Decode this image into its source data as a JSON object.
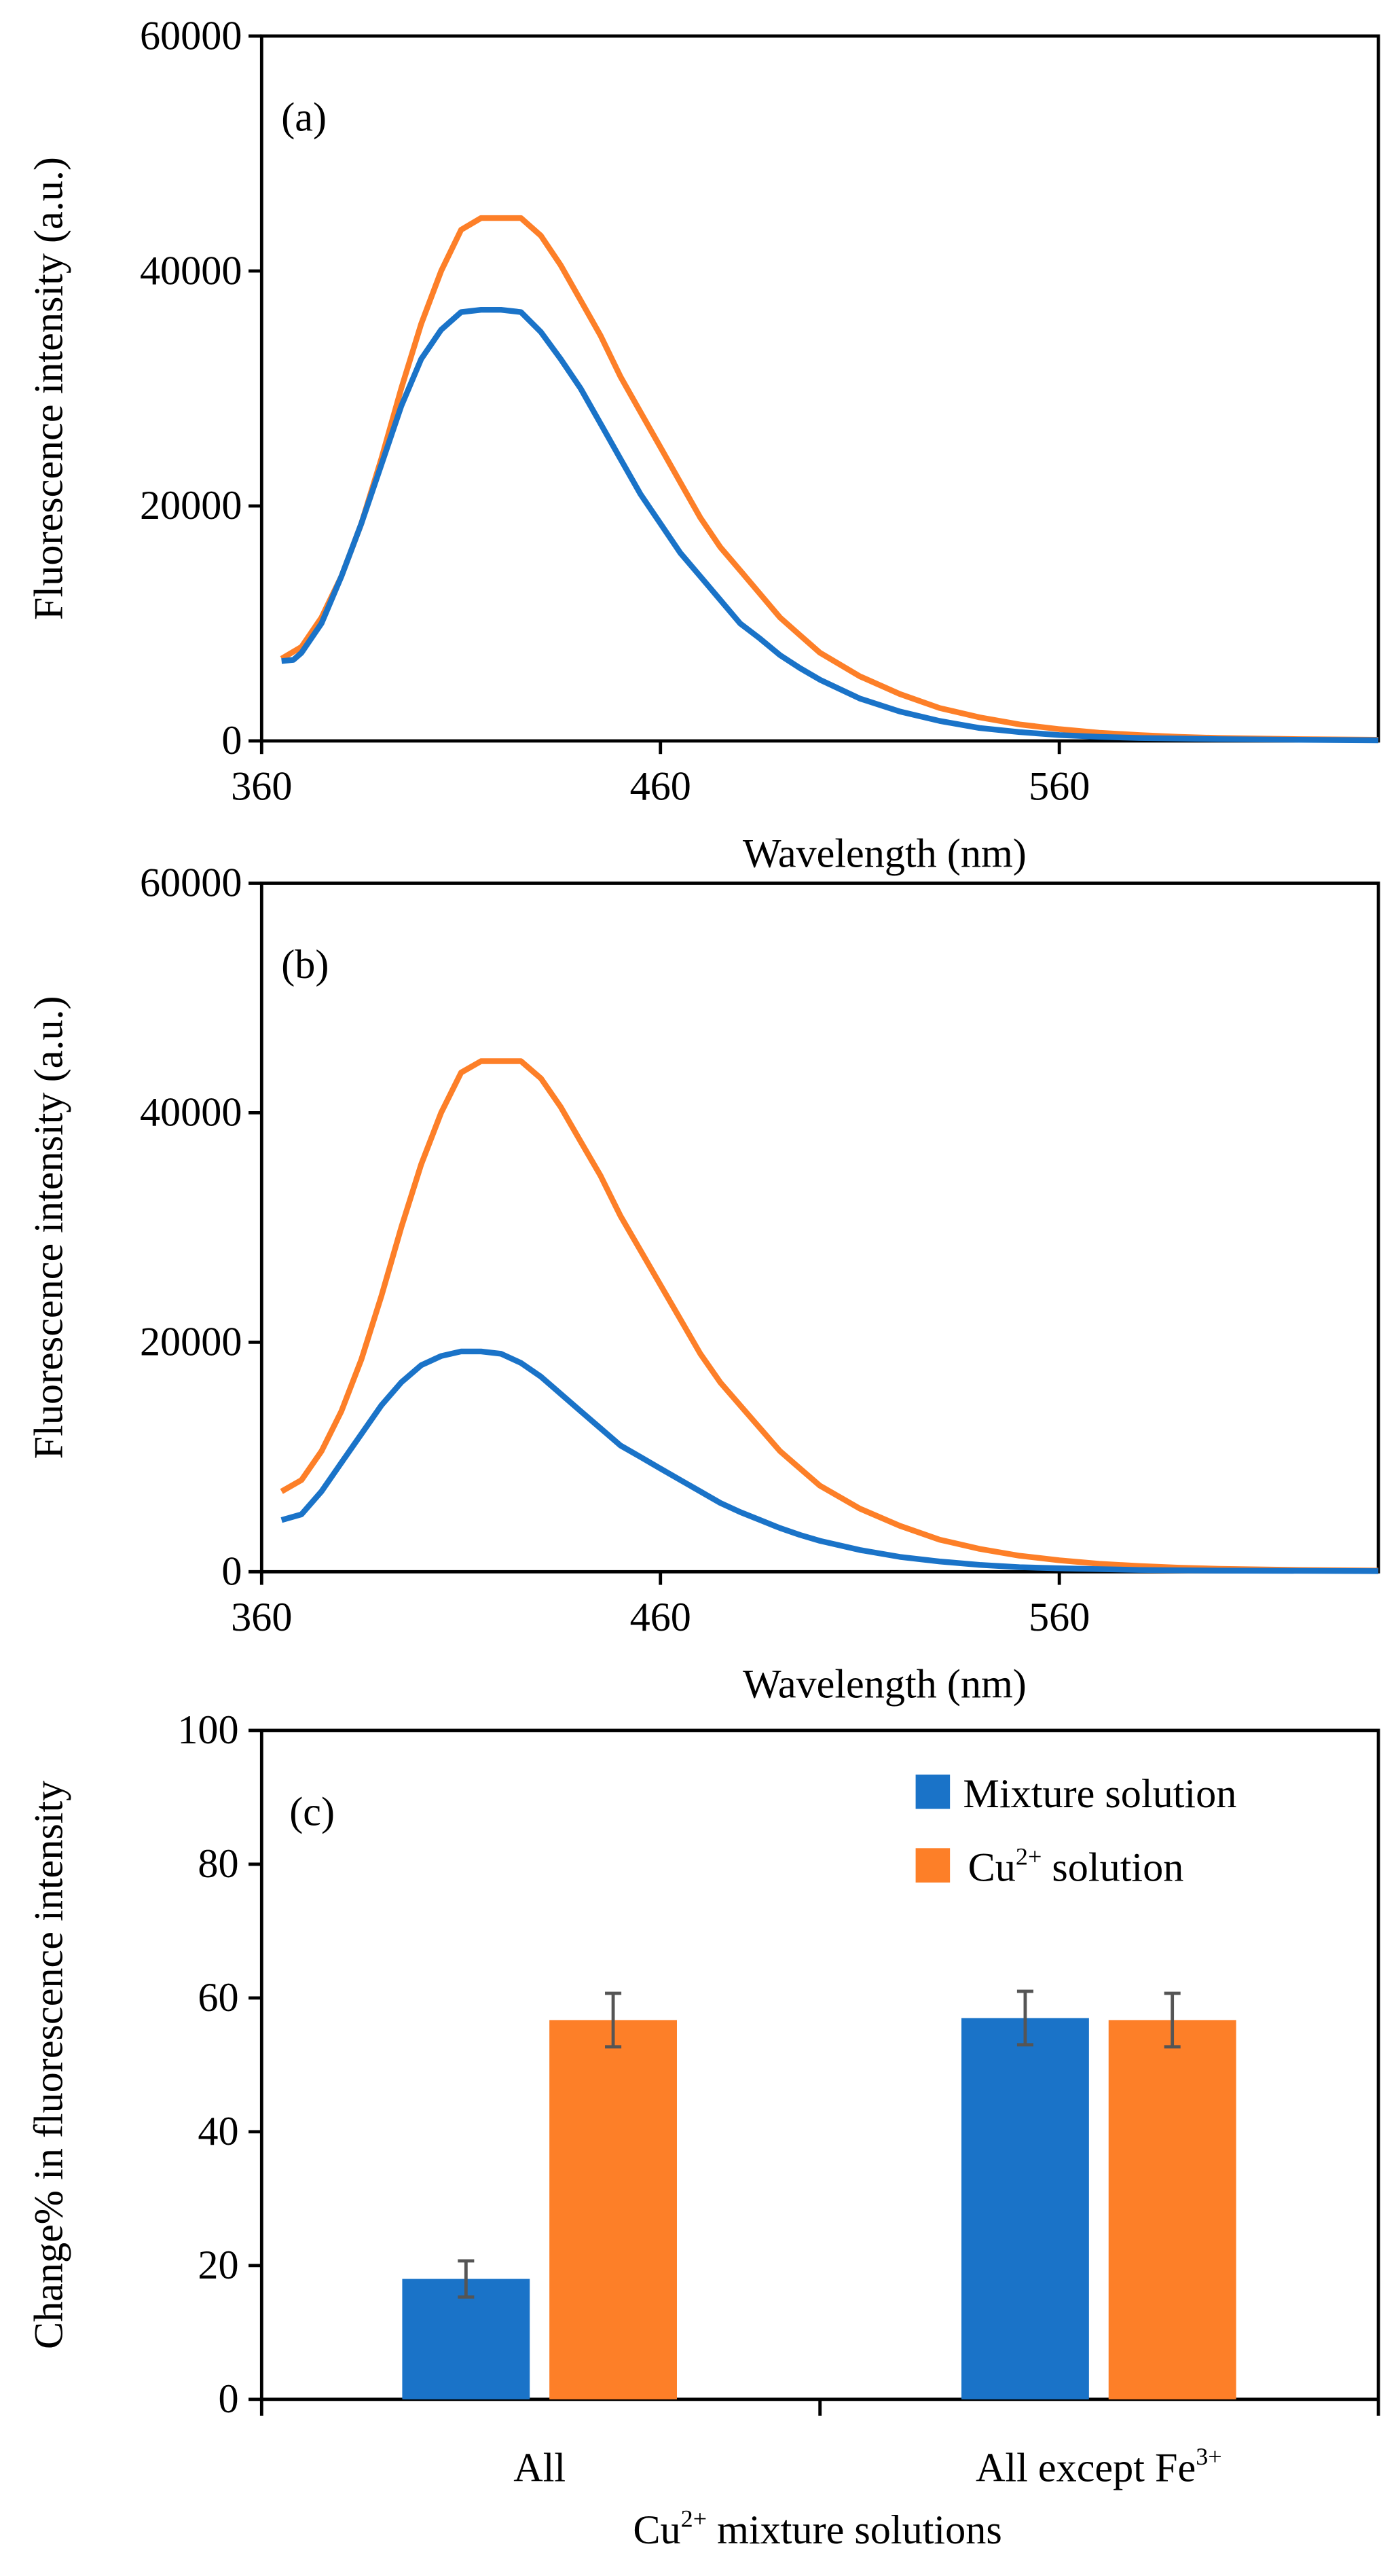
{
  "colors": {
    "blue": "#1a73c8",
    "orange": "#fd7f28",
    "error": "#555555"
  },
  "chart_data": [
    {
      "type": "line",
      "panel_label": "(a)",
      "xlabel": "Wavelength (nm)",
      "ylabel": "Fluorescence intensity (a.u.)",
      "xlim": [
        360,
        640
      ],
      "ylim": [
        0,
        60000
      ],
      "xticks": [
        360,
        460,
        560
      ],
      "yticks": [
        0,
        20000,
        40000,
        60000
      ],
      "series": [
        {
          "name": "orange",
          "color": "#fd7f28",
          "x": [
            365,
            370,
            375,
            380,
            385,
            390,
            395,
            400,
            405,
            410,
            415,
            420,
            425,
            430,
            435,
            440,
            445,
            450,
            455,
            460,
            465,
            470,
            475,
            480,
            485,
            490,
            495,
            500,
            510,
            520,
            530,
            540,
            550,
            560,
            570,
            580,
            590,
            600,
            620,
            640
          ],
          "y": [
            7000,
            8000,
            10500,
            14000,
            18500,
            24000,
            30000,
            35500,
            40000,
            43500,
            44500,
            44500,
            44500,
            43000,
            40500,
            37500,
            34500,
            31000,
            28000,
            25000,
            22000,
            19000,
            16500,
            14500,
            12500,
            10500,
            9000,
            7500,
            5500,
            4000,
            2800,
            2000,
            1400,
            1000,
            700,
            500,
            350,
            250,
            150,
            100
          ]
        },
        {
          "name": "blue",
          "color": "#1a73c8",
          "x": [
            365,
            368,
            370,
            375,
            380,
            385,
            390,
            395,
            400,
            405,
            410,
            415,
            420,
            425,
            430,
            435,
            440,
            445,
            450,
            455,
            460,
            465,
            470,
            475,
            480,
            485,
            490,
            495,
            500,
            510,
            520,
            530,
            540,
            550,
            560,
            570,
            580,
            600,
            620,
            640
          ],
          "y": [
            6800,
            6900,
            7500,
            10000,
            14000,
            18500,
            23500,
            28500,
            32500,
            35000,
            36500,
            36700,
            36700,
            36500,
            34800,
            32500,
            30000,
            27000,
            24000,
            21000,
            18500,
            16000,
            14000,
            12000,
            10000,
            8700,
            7300,
            6200,
            5200,
            3600,
            2500,
            1700,
            1100,
            750,
            500,
            350,
            250,
            150,
            100,
            50
          ]
        }
      ]
    },
    {
      "type": "line",
      "panel_label": "(b)",
      "xlabel": "Wavelength (nm)",
      "ylabel": "Fluorescence intensity (a.u.)",
      "xlim": [
        360,
        640
      ],
      "ylim": [
        0,
        60000
      ],
      "xticks": [
        360,
        460,
        560
      ],
      "yticks": [
        0,
        20000,
        40000,
        60000
      ],
      "series": [
        {
          "name": "orange",
          "color": "#fd7f28",
          "x": [
            365,
            370,
            375,
            380,
            385,
            390,
            395,
            400,
            405,
            410,
            415,
            420,
            425,
            430,
            435,
            440,
            445,
            450,
            455,
            460,
            465,
            470,
            475,
            480,
            485,
            490,
            495,
            500,
            510,
            520,
            530,
            540,
            550,
            560,
            570,
            580,
            590,
            600,
            620,
            640
          ],
          "y": [
            7000,
            8000,
            10500,
            14000,
            18500,
            24000,
            30000,
            35500,
            40000,
            43500,
            44500,
            44500,
            44500,
            43000,
            40500,
            37500,
            34500,
            31000,
            28000,
            25000,
            22000,
            19000,
            16500,
            14500,
            12500,
            10500,
            9000,
            7500,
            5500,
            4000,
            2800,
            2000,
            1400,
            1000,
            700,
            500,
            350,
            250,
            150,
            100
          ]
        },
        {
          "name": "blue",
          "color": "#1a73c8",
          "x": [
            365,
            370,
            375,
            380,
            385,
            390,
            395,
            400,
            405,
            410,
            415,
            420,
            425,
            430,
            435,
            440,
            445,
            450,
            455,
            460,
            465,
            470,
            475,
            480,
            485,
            490,
            495,
            500,
            510,
            520,
            530,
            540,
            550,
            560,
            580,
            600,
            640
          ],
          "y": [
            4500,
            5000,
            7000,
            9500,
            12000,
            14500,
            16500,
            18000,
            18800,
            19200,
            19200,
            19000,
            18200,
            17000,
            15500,
            14000,
            12500,
            11000,
            10000,
            9000,
            8000,
            7000,
            6000,
            5200,
            4500,
            3800,
            3200,
            2700,
            1900,
            1300,
            900,
            600,
            400,
            300,
            150,
            100,
            50
          ]
        }
      ]
    },
    {
      "type": "bar",
      "panel_label": "(c)",
      "xlabel": "Cu2+ mixture solutions",
      "ylabel": "Change% in fluorescence intensity",
      "ylim": [
        0,
        100
      ],
      "yticks": [
        0,
        20,
        40,
        60,
        80,
        100
      ],
      "categories": [
        "All",
        "All except Fe3+"
      ],
      "legend_position": "top-right",
      "series": [
        {
          "name": "Mixture solution",
          "color": "#1a73c8",
          "values": [
            18,
            57
          ],
          "errors": [
            2.7,
            4
          ]
        },
        {
          "name": "Cu2+ solution",
          "color": "#fd7f28",
          "values": [
            56.7,
            56.7
          ],
          "errors": [
            4,
            4
          ]
        }
      ]
    }
  ],
  "text": {
    "xlabel_main": "Wavelength (nm)",
    "c_xlabel_prefix": "Cu",
    "c_xlabel_sup": "2+",
    "c_xlabel_suffix": " mixture solutions",
    "cat1": "All",
    "cat2_prefix": "All except Fe",
    "cat2_sup": "3+",
    "legend1": "Mixture solution",
    "legend2_prefix": "Cu",
    "legend2_sup": "2+",
    "legend2_suffix": " solution"
  }
}
